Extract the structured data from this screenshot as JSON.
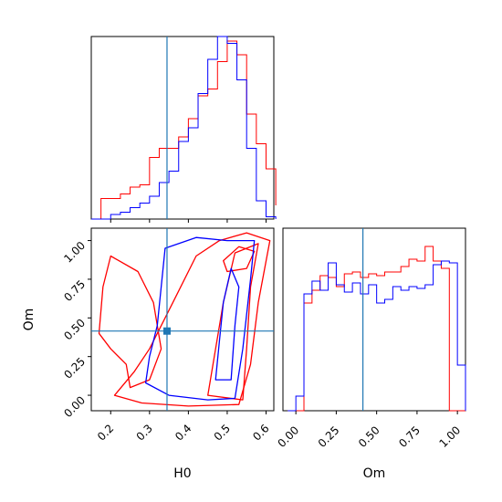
{
  "colors": {
    "red": "#ff0000",
    "blue": "#0000ff",
    "truth": "#1f77b4",
    "frame": "#000000"
  },
  "chart_data": {
    "type": "corner",
    "parameters": [
      "H0",
      "Om"
    ],
    "x_labels": [
      "H0",
      "Om"
    ],
    "y_label": "Om",
    "truth": {
      "H0": 0.345,
      "Om": 0.415
    },
    "hist_h0": {
      "type": "histogram",
      "edges": [
        0.15,
        0.175,
        0.2,
        0.225,
        0.25,
        0.275,
        0.3,
        0.325,
        0.35,
        0.375,
        0.4,
        0.425,
        0.45,
        0.475,
        0.5,
        0.525,
        0.55,
        0.575,
        0.6,
        0.625
      ],
      "series": [
        {
          "color": "red",
          "counts": [
            0,
            0.09,
            0.09,
            0.11,
            0.14,
            0.15,
            0.27,
            0.31,
            0.31,
            0.36,
            0.44,
            0.54,
            0.57,
            0.69,
            0.78,
            0.72,
            0.46,
            0.33,
            0.22,
            0.06
          ]
        },
        {
          "color": "blue",
          "counts": [
            0,
            0,
            0.02,
            0.03,
            0.05,
            0.07,
            0.1,
            0.16,
            0.21,
            0.34,
            0.4,
            0.55,
            0.7,
            0.8,
            0.77,
            0.61,
            0.31,
            0.08,
            0.01,
            0
          ]
        }
      ],
      "xlim": [
        0.15,
        0.62
      ]
    },
    "hist_om": {
      "type": "histogram",
      "edges": [
        -0.05,
        0.0,
        0.05,
        0.1,
        0.15,
        0.2,
        0.25,
        0.3,
        0.35,
        0.4,
        0.45,
        0.5,
        0.55,
        0.6,
        0.65,
        0.7,
        0.75,
        0.8,
        0.85,
        0.9,
        0.95,
        1.0,
        1.05
      ],
      "series": [
        {
          "color": "red",
          "counts": [
            0,
            0,
            0.59,
            0.66,
            0.74,
            0.73,
            0.68,
            0.75,
            0.76,
            0.73,
            0.75,
            0.74,
            0.76,
            0.76,
            0.79,
            0.83,
            0.82,
            0.9,
            0.82,
            0.78,
            0,
            0
          ]
        },
        {
          "color": "blue",
          "counts": [
            0,
            0.08,
            0.64,
            0.71,
            0.66,
            0.81,
            0.69,
            0.65,
            0.7,
            0.64,
            0.69,
            0.59,
            0.61,
            0.68,
            0.66,
            0.68,
            0.67,
            0.69,
            0.8,
            0.82,
            0.81,
            0.25
          ]
        }
      ],
      "xlim": [
        -0.08,
        1.05
      ],
      "xticks": [
        "0.00",
        "0.25",
        "0.50",
        "0.75",
        "1.00"
      ]
    },
    "joint": {
      "type": "contour",
      "x": "H0",
      "y": "Om",
      "xlim": [
        0.15,
        0.62
      ],
      "ylim": [
        -0.1,
        1.08
      ],
      "xticks": [
        "0.2",
        "0.3",
        "0.4",
        "0.5",
        "0.6"
      ],
      "yticks": [
        "0.00",
        "0.25",
        "0.50",
        "0.75",
        "1.00"
      ],
      "contours": [
        {
          "color": "red",
          "points": [
            [
              0.21,
              0.0
            ],
            [
              0.28,
              -0.05
            ],
            [
              0.4,
              -0.07
            ],
            [
              0.53,
              -0.06
            ],
            [
              0.56,
              0.2
            ],
            [
              0.58,
              0.6
            ],
            [
              0.61,
              1.0
            ],
            [
              0.55,
              1.05
            ],
            [
              0.48,
              1.0
            ],
            [
              0.42,
              0.9
            ],
            [
              0.36,
              0.6
            ],
            [
              0.3,
              0.3
            ],
            [
              0.26,
              0.15
            ]
          ]
        },
        {
          "color": "red",
          "points": [
            [
              0.45,
              0.0
            ],
            [
              0.54,
              -0.03
            ],
            [
              0.55,
              0.3
            ],
            [
              0.56,
              0.7
            ],
            [
              0.58,
              0.98
            ],
            [
              0.52,
              0.92
            ],
            [
              0.49,
              0.6
            ],
            [
              0.47,
              0.3
            ]
          ]
        },
        {
          "color": "red",
          "points": [
            [
              0.17,
              0.4
            ],
            [
              0.2,
              0.3
            ],
            [
              0.24,
              0.2
            ],
            [
              0.25,
              0.05
            ],
            [
              0.3,
              0.1
            ],
            [
              0.33,
              0.3
            ],
            [
              0.31,
              0.6
            ],
            [
              0.27,
              0.8
            ],
            [
              0.2,
              0.9
            ],
            [
              0.18,
              0.7
            ]
          ]
        },
        {
          "color": "red",
          "points": [
            [
              0.5,
              0.8
            ],
            [
              0.55,
              0.82
            ],
            [
              0.57,
              0.93
            ],
            [
              0.53,
              0.96
            ],
            [
              0.49,
              0.87
            ]
          ]
        },
        {
          "color": "blue",
          "points": [
            [
              0.29,
              0.08
            ],
            [
              0.35,
              0.0
            ],
            [
              0.45,
              -0.03
            ],
            [
              0.52,
              -0.02
            ],
            [
              0.54,
              0.3
            ],
            [
              0.56,
              0.75
            ],
            [
              0.57,
              1.0
            ],
            [
              0.5,
              1.0
            ],
            [
              0.42,
              1.02
            ],
            [
              0.34,
              0.95
            ],
            [
              0.33,
              0.7
            ],
            [
              0.32,
              0.45
            ],
            [
              0.3,
              0.25
            ]
          ]
        },
        {
          "color": "blue",
          "points": [
            [
              0.47,
              0.1
            ],
            [
              0.51,
              0.1
            ],
            [
              0.52,
              0.45
            ],
            [
              0.53,
              0.7
            ],
            [
              0.51,
              0.82
            ],
            [
              0.49,
              0.6
            ],
            [
              0.48,
              0.35
            ]
          ]
        }
      ]
    }
  }
}
